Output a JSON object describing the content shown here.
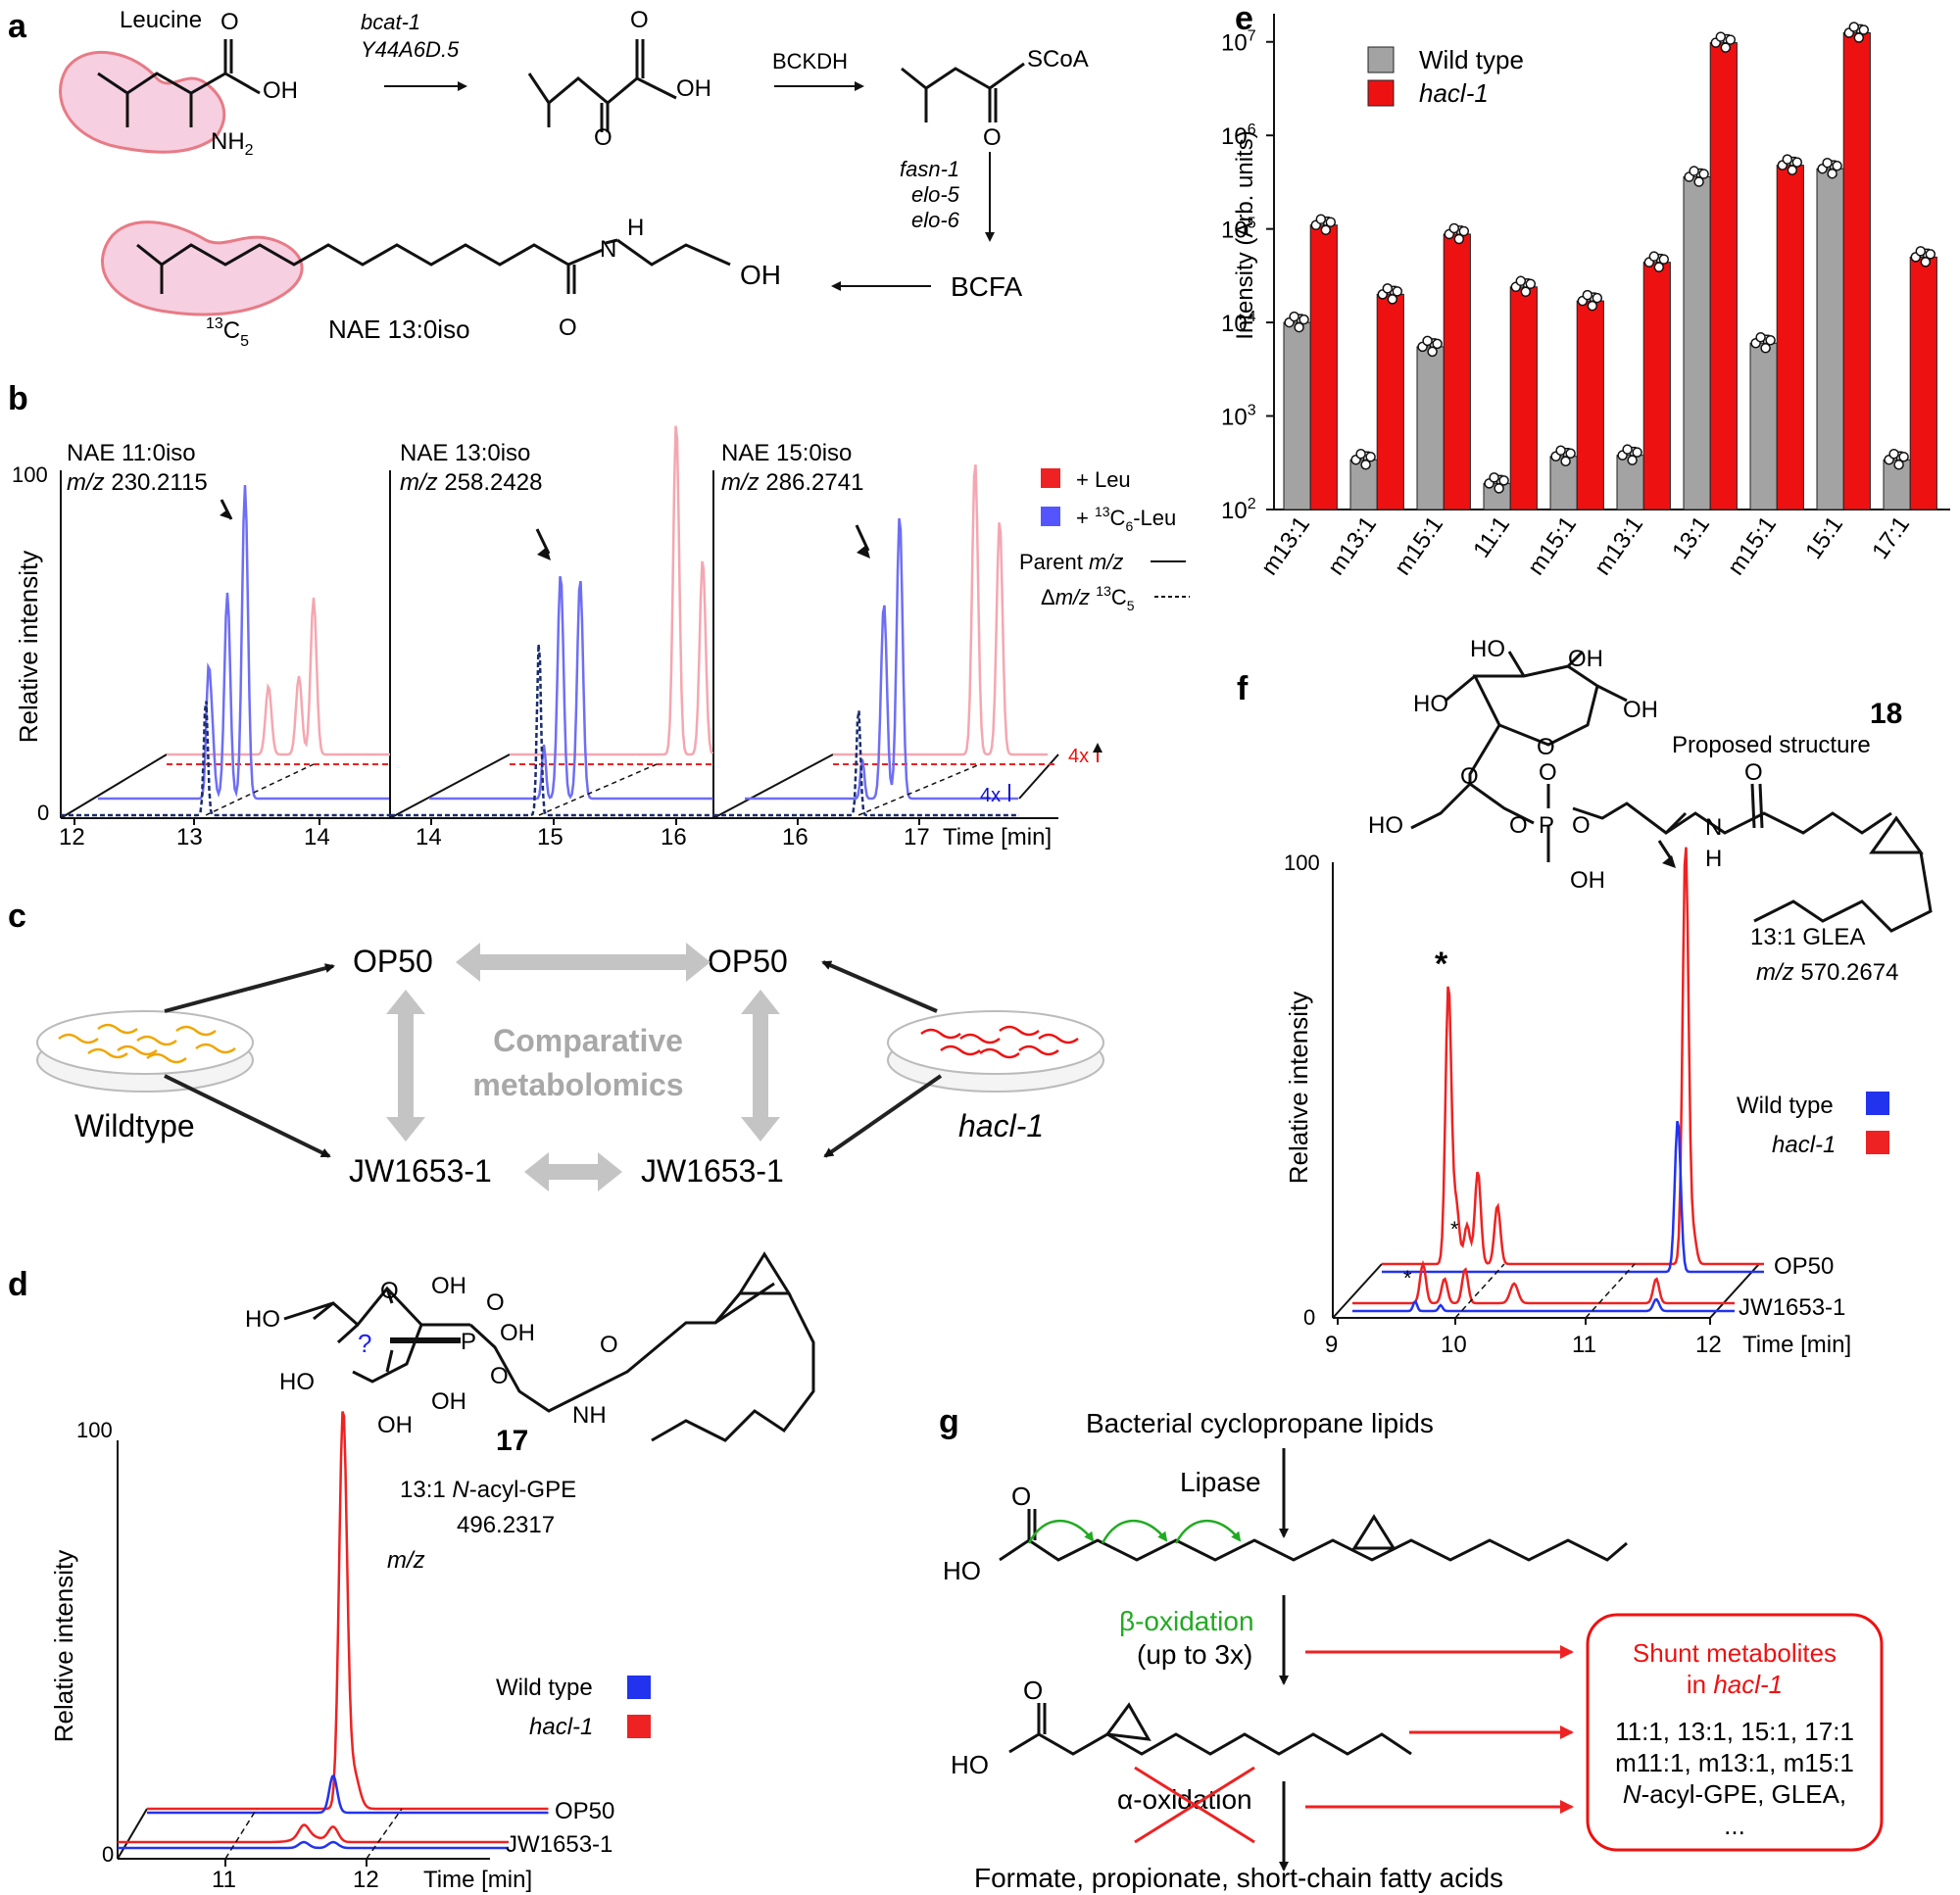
{
  "panel_a": {
    "letter": "a",
    "leucine": "Leucine",
    "oh": "OH",
    "nh2": "NH",
    "nh2_sub": "2",
    "o": "O",
    "gene1": "bcat-1",
    "gene2": "Y44A6D.5",
    "bckdh": "BCKDH",
    "scoa": "SCoA",
    "genes_down": [
      "fasn-1",
      "elo-5",
      "elo-6"
    ],
    "bcfa": "BCFA",
    "h": "H",
    "n": "N",
    "label13": "13",
    "c5": "C",
    "c5_sub": "5",
    "nae": "NAE 13:0iso"
  },
  "panel_b": {
    "letter": "b",
    "titles": [
      {
        "name": "NAE 11:0iso",
        "mz_label": "m/z",
        "mz": "230.2115"
      },
      {
        "name": "NAE 13:0iso",
        "mz_label": "m/z",
        "mz": "258.2428"
      },
      {
        "name": "NAE 15:0iso",
        "mz_label": "m/z",
        "mz": "286.2741"
      }
    ],
    "y_label": "Relative intensity",
    "y_top": "100",
    "y_bottom": "0",
    "ticks": [
      "12",
      "13",
      "14",
      "14",
      "15",
      "16",
      "16",
      "17"
    ],
    "time_label": "Time [min]",
    "legend": {
      "leu": "+ Leu",
      "c13": "+ ",
      "c13_sup": "13",
      "c13_rest": "C",
      "c13_sub": "6",
      "c13_end": "-Leu",
      "parent": "Parent ",
      "parent_mz": "m/z",
      "delta": "Δ",
      "delta_mz": "m/z",
      "delta_sup": "13",
      "delta_c": "C",
      "delta_sub": "5"
    },
    "scale_red": "4x",
    "scale_blue": "4x",
    "colors": {
      "red": "#f07a8a",
      "red_light": "#f4a7b0",
      "blue": "#6e6ef5",
      "dark_blue": "#1a2c6e"
    }
  },
  "panel_c": {
    "letter": "c",
    "op50_left": "OP50",
    "op50_right": "OP50",
    "jw_left": "JW1653-1",
    "jw_right": "JW1653-1",
    "center1": "Comparative",
    "center2": "metabolomics",
    "wildtype": "Wildtype",
    "hacl": "hacl-1"
  },
  "panel_d": {
    "letter": "d",
    "ho1": "HO",
    "ho2": "HO",
    "oh_list": [
      "OH",
      "OH",
      "OH",
      "OH"
    ],
    "o": "O",
    "p": "P",
    "question": "?",
    "nh": "NH",
    "number": "17",
    "compound": "13:1 ",
    "compound_n": "N",
    "compound_rest": "-acyl-GPE",
    "mz_value": "496.2317",
    "mz_label": "m/z",
    "y_label": "Relative intensity",
    "y_top": "100",
    "y_bottom": "0",
    "legend_wt": "Wild type",
    "legend_hacl": "hacl-1",
    "trace_top": "OP50",
    "trace_bottom": "JW1653-1",
    "ticks": [
      "11",
      "12"
    ],
    "time_label": "Time [min]"
  },
  "panel_e": {
    "letter": "e",
    "y_label": "Intensity (Arb. units)",
    "legend_wt": "Wild type",
    "legend_hacl": "hacl-1",
    "colors": {
      "wt": "#a3a3a3",
      "hacl": "#ee1111"
    }
  },
  "panel_f": {
    "letter": "f",
    "ho_labels": [
      "HO",
      "HO",
      "OH",
      "OH",
      "HO"
    ],
    "o": "O",
    "p": "P",
    "oh": "OH",
    "n": "N",
    "h": "H",
    "number": "18",
    "proposed": "Proposed structure",
    "compound": "13:1 GLEA",
    "mz_label": "m/z",
    "mz_value": "570.2674",
    "y_label": "Relative intensity",
    "y_top": "100",
    "y_bottom": "0",
    "legend_wt": "Wild type",
    "legend_hacl": "hacl-1",
    "trace_top": "OP50",
    "trace_bottom": "JW1653-1",
    "ticks": [
      "9",
      "10",
      "11",
      "12"
    ],
    "time_label": "Time [min]",
    "star": "*"
  },
  "panel_g": {
    "letter": "g",
    "title": "Bacterial cyclopropane lipids",
    "lipase": "Lipase",
    "ho": "HO",
    "o": "O",
    "beta": "β-oxidation",
    "beta_sub": "(up to 3x)",
    "alpha": "α-oxidation",
    "end": "Formate, propionate, short-chain fatty acids",
    "shunt_title1": "Shunt metabolites",
    "shunt_title2": "in ",
    "shunt_title2_i": "hacl-1",
    "shunt_line1": "11:1, 13:1, 15:1, 17:1",
    "shunt_line2": "m11:1, m13:1, m15:1",
    "shunt_line3_i": "N",
    "shunt_line3": "-acyl-GPE, GLEA,",
    "shunt_line4": "..."
  },
  "chart_data": [
    {
      "type": "bar",
      "title": "",
      "ylabel": "Intensity (Arb. units)",
      "xlabel": "",
      "yscale": "log",
      "ylim": [
        100,
        20000000
      ],
      "y_ticks": [
        {
          "value": 100,
          "base": "10",
          "exp": "2"
        },
        {
          "value": 1000,
          "base": "10",
          "exp": "3"
        },
        {
          "value": 10000,
          "base": "10",
          "exp": "4"
        },
        {
          "value": 100000,
          "base": "10",
          "exp": "5"
        },
        {
          "value": 1000000,
          "base": "10",
          "exp": "6"
        },
        {
          "value": 10000000,
          "base": "10",
          "exp": "7"
        }
      ],
      "categories": [
        "m13:1",
        "m13:1",
        "m15:1",
        "11:1",
        "m15:1",
        "m13:1",
        "13:1",
        "m15:1",
        "15:1",
        "17:1"
      ],
      "series": [
        {
          "name": "Wild type",
          "values": [
            10000,
            340,
            5500,
            190,
            370,
            380,
            360000,
            6000,
            440000,
            340
          ]
        },
        {
          "name": "hacl-1",
          "values": [
            110000,
            20000,
            88000,
            24000,
            17000,
            44000,
            9800000,
            480000,
            12500000,
            50000
          ]
        }
      ],
      "legend": "top-left"
    }
  ]
}
